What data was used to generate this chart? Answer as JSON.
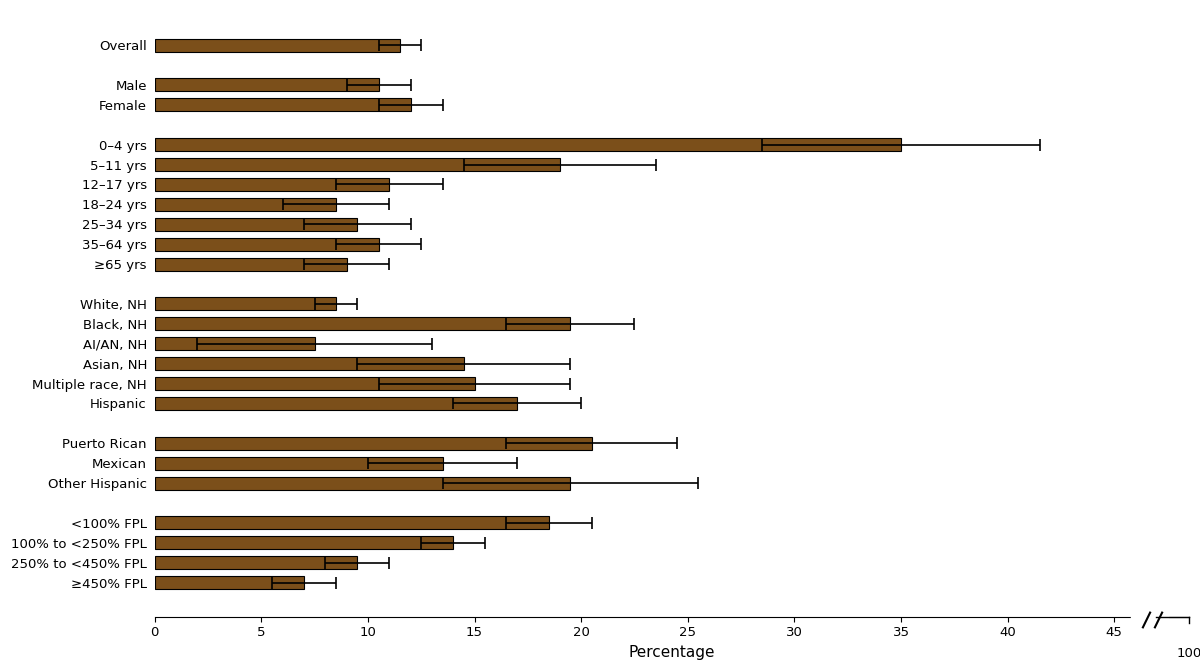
{
  "categories": [
    "Overall",
    "",
    "Male",
    "Female",
    " ",
    "0–4 yrs",
    "5–11 yrs",
    "12–17 yrs",
    "18–24 yrs",
    "25–34 yrs",
    "35–64 yrs",
    "≥65 yrs",
    "  ",
    "White, NH",
    "Black, NH",
    "AI/AN, NH",
    "Asian, NH",
    "Multiple race, NH",
    "Hispanic",
    "   ",
    "Puerto Rican",
    "Mexican",
    "Other Hispanic",
    "    ",
    "<100% FPL",
    "100% to <250% FPL",
    "250% to <450% FPL",
    "≥450% FPL"
  ],
  "values": [
    11.5,
    0,
    10.5,
    12.0,
    0,
    35.0,
    19.0,
    11.0,
    8.5,
    9.5,
    10.5,
    9.0,
    0,
    8.5,
    19.5,
    7.5,
    14.5,
    15.0,
    17.0,
    0,
    20.5,
    13.5,
    19.5,
    0,
    18.5,
    14.0,
    9.5,
    7.0
  ],
  "errors": [
    1.0,
    0,
    1.5,
    1.5,
    0,
    6.5,
    4.5,
    2.5,
    2.5,
    2.5,
    2.0,
    2.0,
    0,
    1.0,
    3.0,
    5.5,
    5.0,
    4.5,
    3.0,
    0,
    4.0,
    3.5,
    6.0,
    0,
    2.0,
    1.5,
    1.5,
    1.5
  ],
  "bar_color": "#7B4F1A",
  "edge_color": "#000000",
  "background_color": "#ffffff",
  "xlabel": "Percentage",
  "xlabel_fontsize": 11,
  "ytick_fontsize": 9.5,
  "xtick_fontsize": 9.5,
  "xtick_positions": [
    0,
    5,
    10,
    15,
    20,
    25,
    30,
    35,
    40,
    45
  ],
  "xtick_labels": [
    "0",
    "5",
    "10",
    "15",
    "20",
    "25",
    "30",
    "35",
    "40",
    "45"
  ],
  "bar_height": 0.65
}
